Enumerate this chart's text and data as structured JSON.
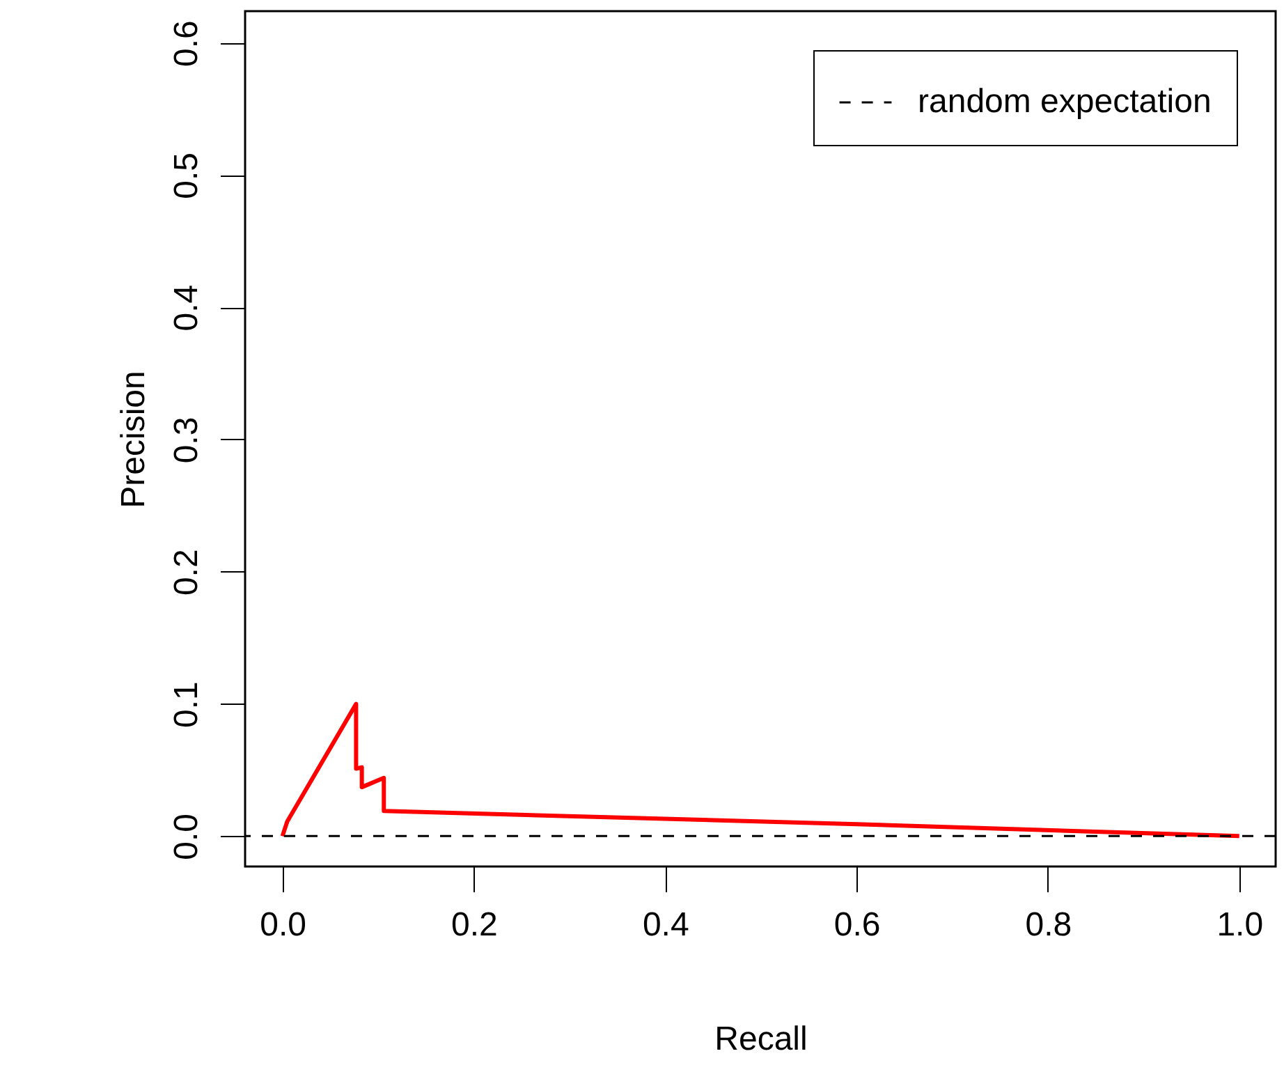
{
  "chart_data": {
    "type": "line",
    "xlabel": "Recall",
    "ylabel": "Precision",
    "series": [
      {
        "color": "#ff0000",
        "x": [
          0,
          0.005,
          0.077,
          0.077,
          0.083,
          0.083,
          0.106,
          0.106,
          0.6,
          1.0
        ],
        "values": [
          0,
          0.011,
          0.1,
          0.051,
          0.052,
          0.037,
          0.044,
          0.019,
          0.009,
          0
        ]
      }
    ],
    "xlim": [
      -0.039,
      1.038
    ],
    "ylim": [
      -0.023,
      0.624
    ],
    "xticks": [
      {
        "value": 0,
        "label": "0.0"
      },
      0.2,
      0.4,
      0.6,
      0.8,
      {
        "value": 1,
        "label": "1.0"
      }
    ],
    "yticks": [
      {
        "value": 0,
        "label": "0.0"
      },
      0.1,
      0.2,
      0.3,
      0.4,
      0.5,
      0.6
    ],
    "ref_lines": [
      {
        "axis": "y",
        "value": 0,
        "label": "random expectation",
        "color": "#000000",
        "line_style": "dashed"
      }
    ],
    "legend": "top right",
    "grid": false
  }
}
